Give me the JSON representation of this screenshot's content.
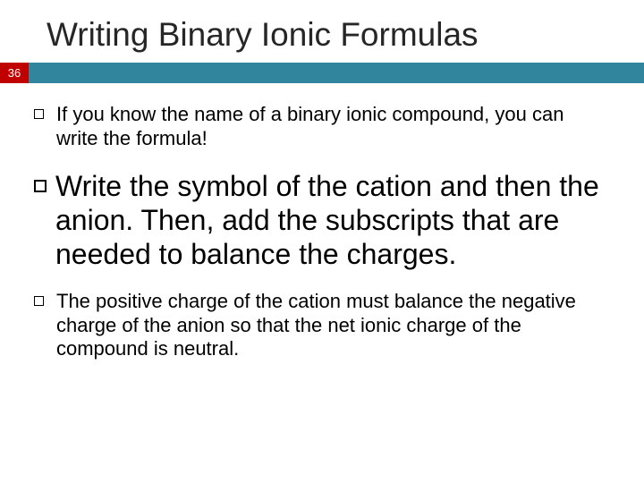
{
  "title": "Writing Binary Ionic Formulas",
  "page_number": "36",
  "colors": {
    "bar": "#31859c",
    "page_box": "#c00000",
    "text": "#000000",
    "title_text": "#262626",
    "background": "#ffffff"
  },
  "bullets": [
    {
      "size": "small",
      "text": "If you know the name of a binary ionic compound, you can write the formula!"
    },
    {
      "size": "large",
      "text": "Write the symbol of the cation and then the anion.  Then, add the subscripts that are needed to balance the charges."
    },
    {
      "size": "small",
      "text": "The positive charge of the cation must balance the negative charge of the anion so that the net ionic charge of the compound is neutral."
    }
  ]
}
